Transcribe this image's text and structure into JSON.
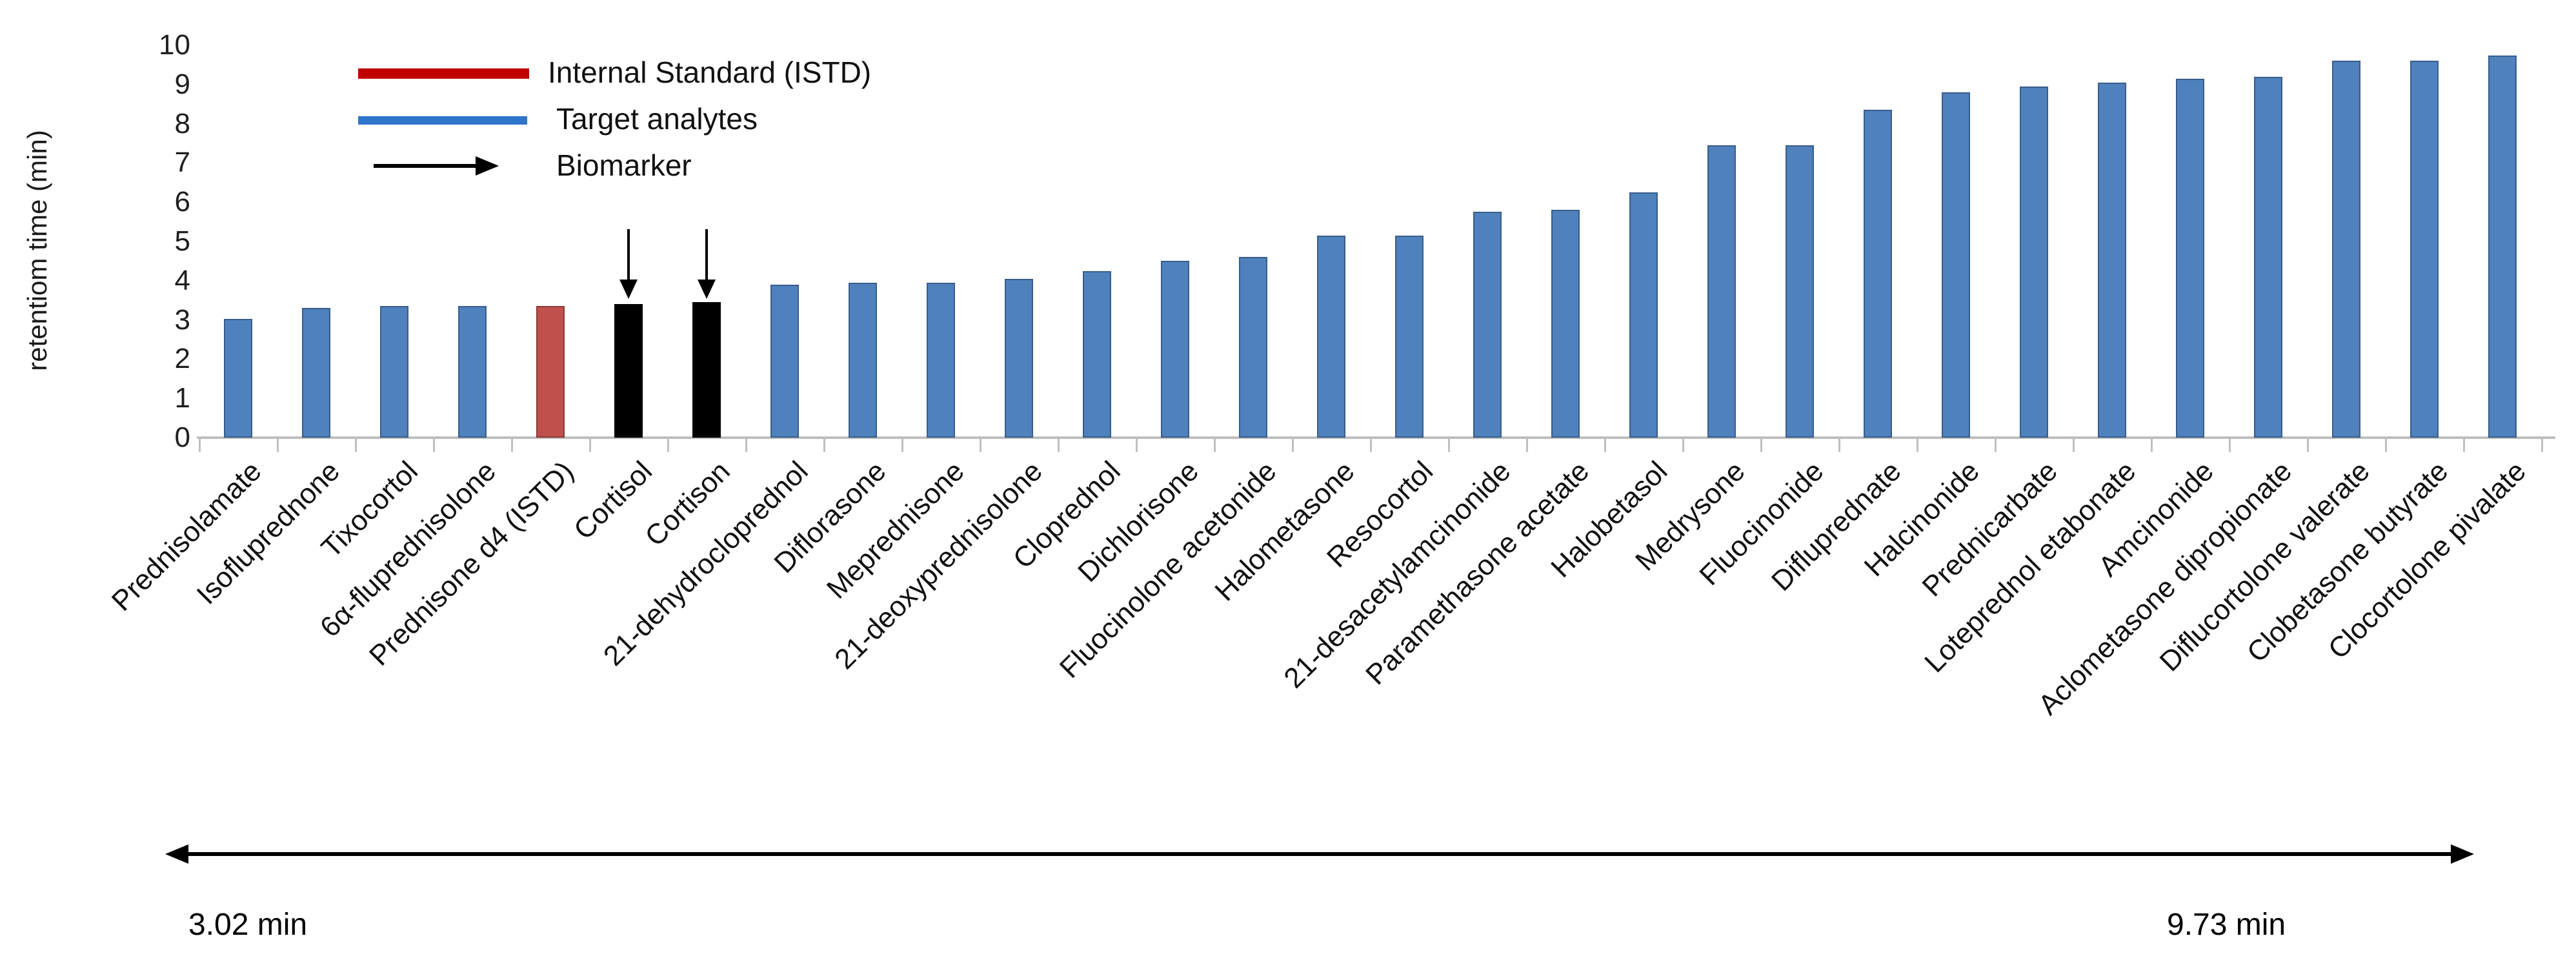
{
  "y_axis": {
    "title": "retentiom time (min)",
    "tick_labels": [
      "0",
      "1",
      "2",
      "3",
      "4",
      "5",
      "6",
      "7",
      "8",
      "9",
      "10"
    ]
  },
  "legend": {
    "items": [
      {
        "label": "Internal Standard (ISTD)",
        "swatch": "red-line",
        "color": "#c00000"
      },
      {
        "label": "Target analytes",
        "swatch": "blue-line",
        "color": "#2e75c9"
      },
      {
        "label": "Biomarker",
        "swatch": "arrow",
        "color": "#000000"
      }
    ]
  },
  "annotations": {
    "range_start": "3.02 min",
    "range_end": "9.73 min"
  },
  "colors": {
    "target_fill": "#4f81bd",
    "target_border": "#385d8a",
    "istd_fill": "#c0504d",
    "istd_border": "#8c3836",
    "biomarker_fill": "#000000",
    "biomarker_border": "#000000",
    "axis": "#bfbfbf"
  },
  "chart_data": {
    "type": "bar",
    "title": "",
    "xlabel": "",
    "ylabel": "retentiom time (min)",
    "ylim": [
      0,
      10
    ],
    "grid": false,
    "legend_position": "top-left",
    "categories": [
      "Prednisolamate",
      "Isofluprednone",
      "Tixocortol",
      "6α-fluprednisolone",
      "Prednisone d4 (ISTD)",
      "Cortisol",
      "Cortison",
      "21-dehydrocloprednol",
      "Diflorasone",
      "Meprednisone",
      "21-deoxyprednisolone",
      "Cloprednol",
      "Dichlorisone",
      "Fluocinolone acetonide",
      "Halometasone",
      "Resocortol",
      "21-desacetylamcinonide",
      "Paramethasone acetate",
      "Halobetasol",
      "Medrysone",
      "Fluocinonide",
      "Difluprednate",
      "Halcinonide",
      "Prednicarbate",
      "Loteprednol etabonate",
      "Amcinonide",
      "Aclometasone dipropionate",
      "Diflucortolone valerate",
      "Clobetasone butyrate",
      "Clocortolone pivalate"
    ],
    "values": [
      3.02,
      3.3,
      3.35,
      3.35,
      3.35,
      3.4,
      3.45,
      3.9,
      3.95,
      3.95,
      4.05,
      4.25,
      4.5,
      4.6,
      5.15,
      5.15,
      5.75,
      5.8,
      6.25,
      7.45,
      7.45,
      8.35,
      8.8,
      8.95,
      9.05,
      9.15,
      9.2,
      9.6,
      9.6,
      9.73
    ],
    "roles": [
      "target",
      "target",
      "target",
      "target",
      "istd",
      "biomarker",
      "biomarker",
      "target",
      "target",
      "target",
      "target",
      "target",
      "target",
      "target",
      "target",
      "target",
      "target",
      "target",
      "target",
      "target",
      "target",
      "target",
      "target",
      "target",
      "target",
      "target",
      "target",
      "target",
      "target",
      "target"
    ],
    "series": [
      {
        "name": "retention time (min)",
        "values": [
          3.02,
          3.3,
          3.35,
          3.35,
          3.35,
          3.4,
          3.45,
          3.9,
          3.95,
          3.95,
          4.05,
          4.25,
          4.5,
          4.6,
          5.15,
          5.15,
          5.75,
          5.8,
          6.25,
          7.45,
          7.45,
          8.35,
          8.8,
          8.95,
          9.05,
          9.15,
          9.2,
          9.6,
          9.6,
          9.73
        ]
      }
    ]
  }
}
